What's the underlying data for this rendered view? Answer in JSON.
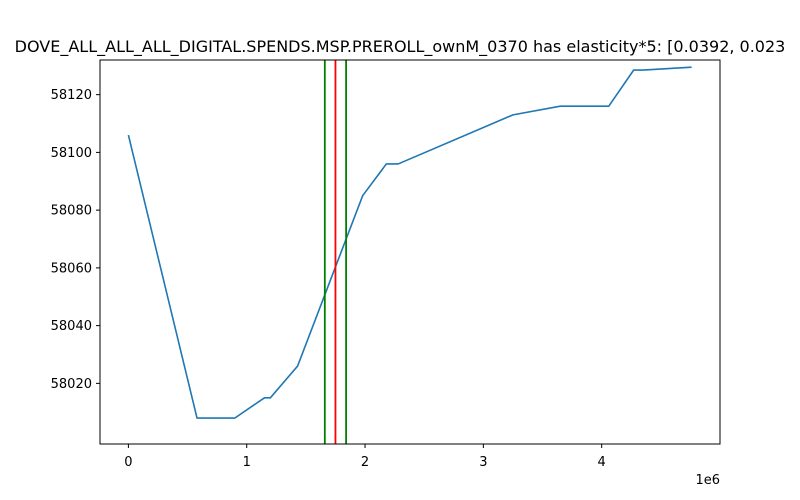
{
  "chart_data": {
    "type": "line",
    "title": "DOVE_ALL_ALL_ALL_DIGITAL.SPENDS.MSP.PREROLL_ownM_0370 has elasticity*5:   [0.0392, 0.023",
    "xlabel": "",
    "ylabel": "",
    "x_offset_text": "1e6",
    "xlim": [
      -240000,
      5000000
    ],
    "ylim": [
      57999,
      58132
    ],
    "x_ticks": [
      0,
      1,
      2,
      3,
      4
    ],
    "x_tick_labels": [
      "0",
      "1",
      "2",
      "3",
      "4"
    ],
    "y_ticks": [
      58020,
      58040,
      58060,
      58080,
      58100,
      58120
    ],
    "y_tick_labels": [
      "58020",
      "58040",
      "58060",
      "58080",
      "58100",
      "58120"
    ],
    "grid": false,
    "series": [
      {
        "color": "#1f77b4",
        "x": [
          0,
          580000,
          900000,
          1150000,
          1200000,
          1430000,
          1980000,
          2180000,
          2280000,
          3250000,
          3650000,
          4060000,
          4270000,
          4350000,
          4760000
        ],
        "y": [
          58106,
          58008,
          58008,
          58015,
          58015,
          58026,
          58085,
          58096,
          58096,
          58113,
          58116,
          58116,
          58128.5,
          58128.5,
          58129.5
        ]
      }
    ],
    "vlines": [
      {
        "x": 1660000,
        "color": "#008000"
      },
      {
        "x": 1750000,
        "color": "#ff0000"
      },
      {
        "x": 1840000,
        "color": "#008000"
      }
    ]
  }
}
